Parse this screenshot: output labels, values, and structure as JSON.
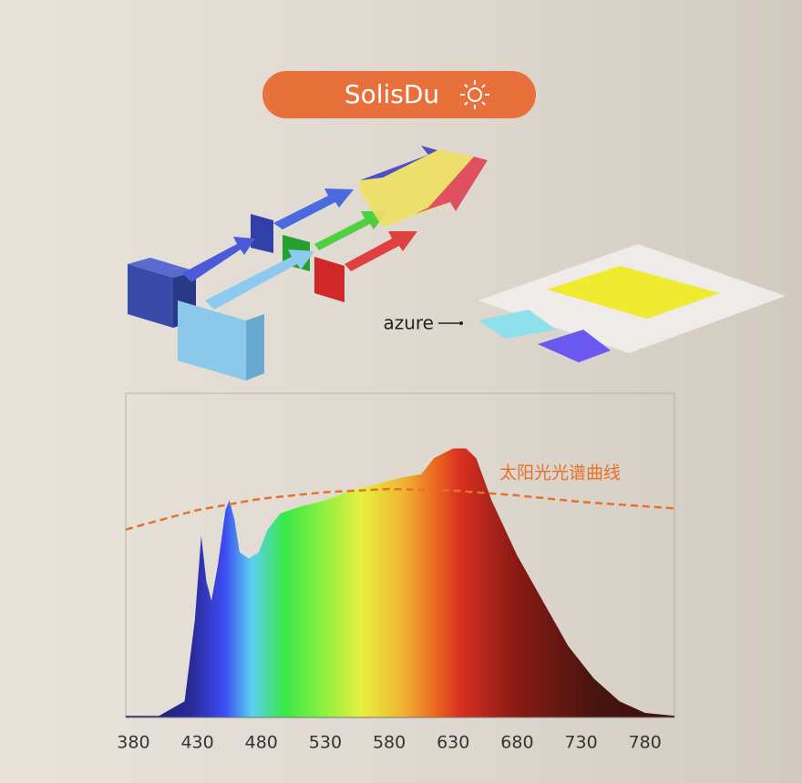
{
  "header": {
    "title": "SolisDu"
  },
  "illustration": {
    "label": "azure"
  },
  "chart_data": {
    "type": "area",
    "annotation": "太阳光光谱曲线",
    "xlim": [
      374,
      803
    ],
    "ylim": [
      0,
      100
    ],
    "xticks": [
      380,
      430,
      480,
      530,
      580,
      630,
      680,
      730,
      780
    ],
    "series": [
      {
        "x": [
          374,
          400,
          420,
          428,
          433,
          437,
          441,
          446,
          452,
          455,
          459,
          463,
          470,
          478,
          485,
          495,
          510,
          530,
          550,
          570,
          590,
          605,
          615,
          630,
          640,
          648,
          660,
          680,
          700,
          720,
          740,
          760,
          780,
          803
        ],
        "values": [
          0.5,
          0.5,
          5,
          30,
          56,
          42,
          36,
          47,
          64,
          67,
          61,
          51,
          49,
          51,
          58,
          63,
          65,
          67,
          70,
          72,
          74,
          75,
          80,
          83,
          83,
          80,
          67,
          50,
          36,
          22,
          12,
          5,
          1.4,
          0.5
        ]
      },
      {
        "x": [
          374,
          430,
          480,
          530,
          580,
          630,
          680,
          730,
          803
        ],
        "values": [
          58,
          64,
          67.5,
          69.5,
          70.5,
          70,
          68.5,
          66.5,
          64.5
        ],
        "color": "#e8702a"
      }
    ]
  }
}
